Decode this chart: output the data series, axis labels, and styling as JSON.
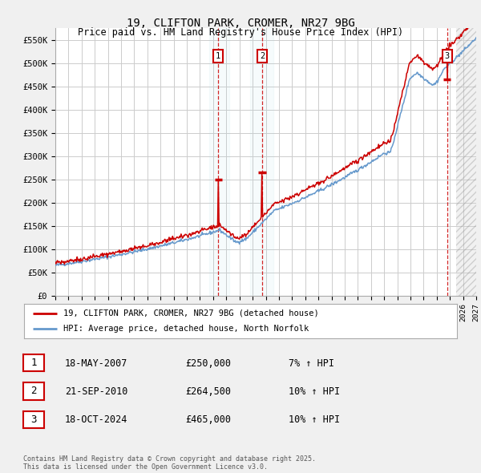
{
  "title": "19, CLIFTON PARK, CROMER, NR27 9BG",
  "subtitle": "Price paid vs. HM Land Registry's House Price Index (HPI)",
  "ylim": [
    0,
    575000
  ],
  "yticks": [
    0,
    50000,
    100000,
    150000,
    200000,
    250000,
    300000,
    350000,
    400000,
    450000,
    500000,
    550000
  ],
  "background_color": "#f0f0f0",
  "plot_bg_color": "#ffffff",
  "grid_color": "#cccccc",
  "hpi_color": "#6699cc",
  "price_color": "#cc0000",
  "sale_dates": [
    2007.38,
    2010.72,
    2024.79
  ],
  "sale_prices": [
    250000,
    264500,
    465000
  ],
  "sale_labels": [
    "1",
    "2",
    "3"
  ],
  "legend_label_price": "19, CLIFTON PARK, CROMER, NR27 9BG (detached house)",
  "legend_label_hpi": "HPI: Average price, detached house, North Norfolk",
  "table_entries": [
    {
      "num": "1",
      "date": "18-MAY-2007",
      "price": "£250,000",
      "pct": "7% ↑ HPI"
    },
    {
      "num": "2",
      "date": "21-SEP-2010",
      "price": "£264,500",
      "pct": "10% ↑ HPI"
    },
    {
      "num": "3",
      "date": "18-OCT-2024",
      "price": "£465,000",
      "pct": "10% ↑ HPI"
    }
  ],
  "footer": "Contains HM Land Registry data © Crown copyright and database right 2025.\nThis data is licensed under the Open Government Licence v3.0.",
  "xmin": 1995,
  "xmax": 2027
}
